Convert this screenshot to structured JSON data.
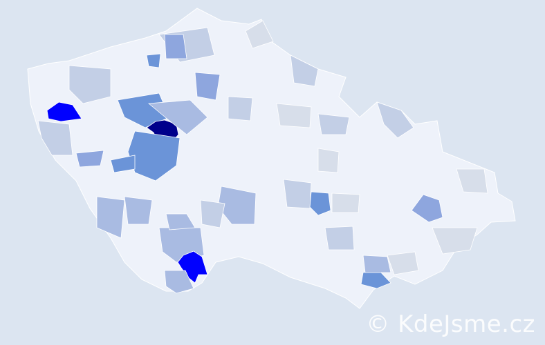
{
  "map": {
    "colors": {
      "background": "#dce5f1",
      "land": "#eef2fa",
      "border": "#ffffff",
      "level_1": "#d7deea",
      "level_2": "#c3cfe6",
      "level_3": "#a9bbe2",
      "level_4": "#8ea6de",
      "level_5": "#6b94d8",
      "level_6": "#0000ff",
      "level_7": "#00008b"
    }
  },
  "watermark": "© KdeJsme.cz"
}
